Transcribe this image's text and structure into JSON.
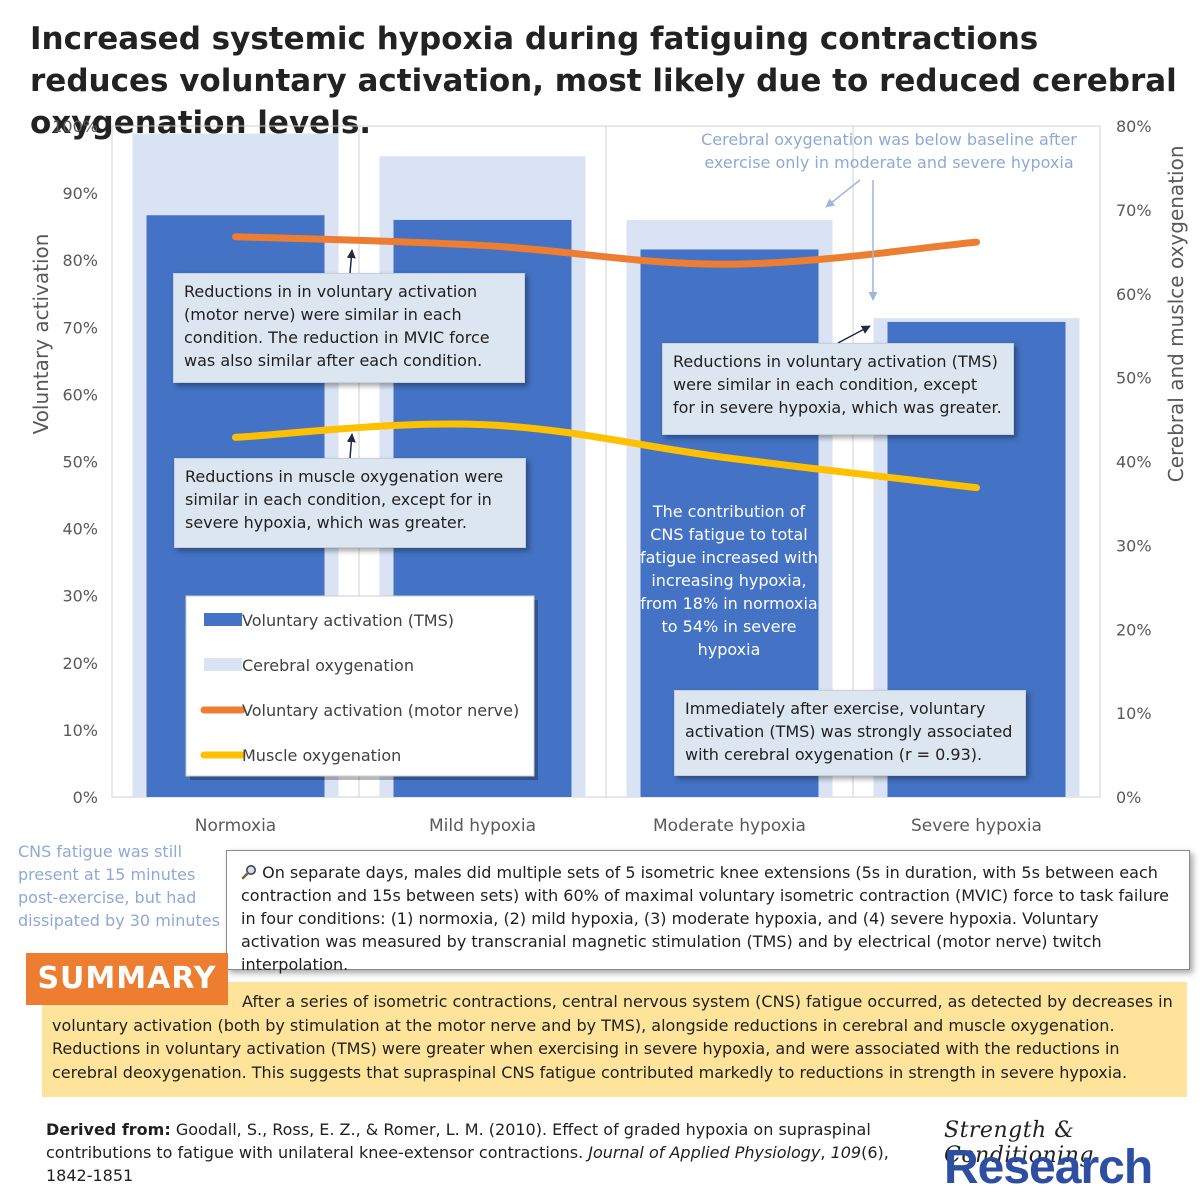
{
  "title": "Increased systemic hypoxia during fatiguing contractions reduces voluntary activation, most likely due to reduced cerebral oxygenation levels.",
  "chart_data": {
    "type": "bar",
    "categories": [
      "Normoxia",
      "Mild hypoxia",
      "Moderate hypoxia",
      "Severe hypoxia"
    ],
    "ylabel_left": "Voluntary activation",
    "ylabel_right": "Cerebral and muslce oxygenation",
    "ylim_left": [
      0,
      100
    ],
    "ylim_right": [
      0,
      80
    ],
    "left_ticks": [
      "0%",
      "10%",
      "20%",
      "30%",
      "40%",
      "50%",
      "60%",
      "70%",
      "80%",
      "90%",
      "100%"
    ],
    "right_ticks": [
      "0%",
      "10%",
      "20%",
      "30%",
      "40%",
      "50%",
      "60%",
      "70%",
      "80%"
    ],
    "grid": "vertical separators only",
    "legend_position": "bottom-left",
    "series": [
      {
        "name": "Voluntary activation (TMS)",
        "type": "bar",
        "axis": "left",
        "color": "#4472c4",
        "values": [
          86.7,
          86.0,
          81.6,
          70.8
        ]
      },
      {
        "name": "Cerebral oxygenation",
        "type": "bar",
        "axis": "right",
        "color": "#dae3f3",
        "values": [
          79.1,
          76.4,
          68.8,
          57.1
        ]
      },
      {
        "name": "Voluntary activation (motor nerve)",
        "type": "line",
        "axis": "left",
        "color": "#ed7d31",
        "values": [
          83.5,
          82.2,
          79.4,
          82.7
        ]
      },
      {
        "name": "Muscle oxygenation",
        "type": "line",
        "axis": "left",
        "color": "#ffc000",
        "values": [
          53.6,
          55.5,
          50.5,
          46.1
        ]
      }
    ]
  },
  "annotations": {
    "cerebral_note": "Cerebral oxygenation was below baseline after exercise only in moderate and severe hypoxia",
    "motor_nerve_note": "Reductions in in voluntary activation (motor nerve) were similar in each condition. The reduction in MVIC force was also similar after each condition.",
    "tms_note": "Reductions in voluntary activation (TMS) were similar in each condition, except for in severe hypoxia, which was greater.",
    "muscle_note": "Reductions in muscle oxygenation were similar in each condition, except for in severe hypoxia, which was greater.",
    "cns_note": "The contribution of CNS fatigue to total fatigue increased with increasing hypoxia, from 18% in normoxia to 54% in severe hypoxia",
    "correlation_note": "Immediately after exercise, voluntary activation (TMS) was strongly associated with cerebral oxygenation (r = 0.93).",
    "cns_persist_note": "CNS fatigue was still present at 15 minutes post-exercise, but had dissipated by 30 minutes"
  },
  "method": {
    "icon": "magnifier-icon",
    "text": "On separate days, males did multiple sets of 5 isometric knee extensions (5s in duration, with 5s between each contraction and 15s between sets) with 60% of maximal voluntary isometric contraction (MVIC) force to task failure in four conditions: (1) normoxia, (2) mild hypoxia, (3) moderate hypoxia, and (4) severe hypoxia. Voluntary activation was measured by transcranial magnetic stimulation (TMS) and by electrical (motor nerve) twitch interpolation."
  },
  "summary": {
    "label": "SUMMARY",
    "text": "After a series of isometric contractions, central nervous system (CNS) fatigue occurred, as detected by decreases in voluntary activation (both by stimulation at the motor nerve and by TMS), alongside reductions in cerebral and muscle oxygenation. Reductions in voluntary activation (TMS) were greater when exercising in severe hypoxia, and were associated with the reductions in cerebral deoxygenation. This suggests that supraspinal CNS fatigue contributed markedly to reductions in strength in severe hypoxia."
  },
  "citation": {
    "label": "Derived from:",
    "authors": "Goodall, S., Ross, E. Z., & Romer, L. M. (2010). Effect of graded hypoxia on supraspinal contributions to fatigue with unilateral knee-extensor contractions.",
    "journal": "Journal of Applied Physiology",
    "volume": "109",
    "issue_pages": "(6), 1842-1851"
  },
  "logo": {
    "script": "Strength & Conditioning",
    "main": "Research"
  }
}
